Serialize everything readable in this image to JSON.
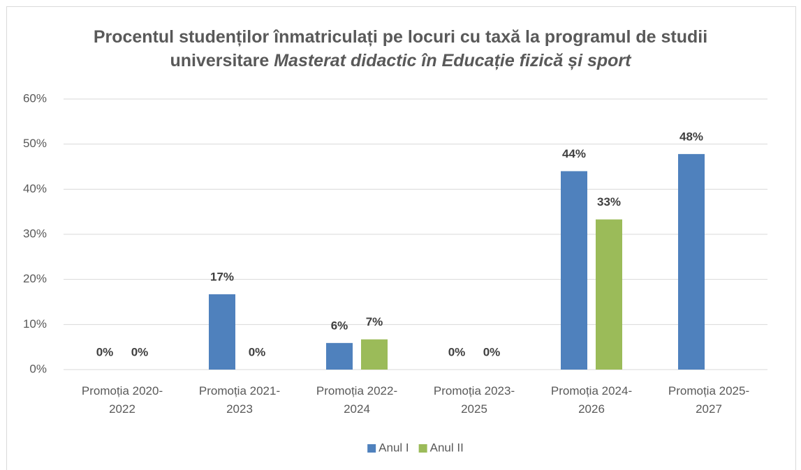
{
  "chart_data": {
    "type": "bar",
    "title": "Procentul studenților înmatriculați pe locuri cu taxă la programul de studii universitare",
    "title_italic": "Masterat didactic în Educație fizică și sport",
    "categories": [
      "Promoția 2020-2022",
      "Promoția 2021-2023",
      "Promoția 2022-2024",
      "Promoția 2023-2025",
      "Promoția 2024-2026",
      "Promoția 2025-2027"
    ],
    "series": [
      {
        "name": "Anul I",
        "color": "#4f81bd",
        "values": [
          0,
          16.7,
          5.9,
          0,
          44,
          47.8
        ],
        "value_labels": [
          "0%",
          "17%",
          "6%",
          "0%",
          "44%",
          "48%"
        ]
      },
      {
        "name": "Anul II",
        "color": "#9bbb59",
        "values": [
          0,
          0,
          6.7,
          0,
          33.3,
          null
        ],
        "value_labels": [
          "0%",
          "0%",
          "7%",
          "0%",
          "33%",
          null
        ]
      }
    ],
    "ylim": [
      0,
      60
    ],
    "yticks": [
      {
        "value": 0,
        "label": "0%"
      },
      {
        "value": 10,
        "label": "10%"
      },
      {
        "value": 20,
        "label": "20%"
      },
      {
        "value": 30,
        "label": "30%"
      },
      {
        "value": 40,
        "label": "40%"
      },
      {
        "value": 50,
        "label": "50%"
      },
      {
        "value": 60,
        "label": "60%"
      }
    ],
    "grid": true,
    "legend": "bottom"
  }
}
